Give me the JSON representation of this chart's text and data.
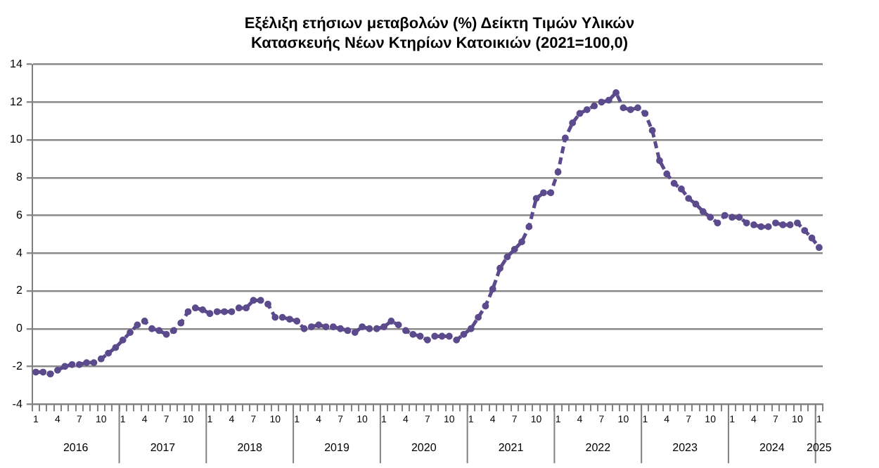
{
  "chart_data": {
    "type": "line",
    "title": "Εξέλιξη ετήσιων μεταβολών (%) Δείκτη Τιμών Υλικών Κατασκευής Νέων Κτηρίων Κατοικιών (2021=100,0)",
    "categories": [
      "1",
      null,
      null,
      "4",
      null,
      null,
      "7",
      null,
      null,
      "10",
      null,
      null,
      "1",
      null,
      null,
      "4",
      null,
      null,
      "7",
      null,
      null,
      "10",
      null,
      null,
      "1",
      null,
      null,
      "4",
      null,
      null,
      "7",
      null,
      null,
      "10",
      null,
      null,
      "1",
      null,
      null,
      "4",
      null,
      null,
      "7",
      null,
      null,
      "10",
      null,
      null,
      "1",
      null,
      null,
      "4",
      null,
      null,
      "7",
      null,
      null,
      "10",
      null,
      null,
      "1",
      null,
      null,
      "4",
      null,
      null,
      "7",
      null,
      null,
      "10",
      null,
      null,
      "1",
      null,
      null,
      "4",
      null,
      null,
      "7",
      null,
      null,
      "10",
      null,
      null,
      "1",
      null,
      null,
      "4",
      null,
      null,
      "7",
      null,
      null,
      "10",
      null,
      null,
      "1",
      null,
      null,
      "4",
      null,
      null,
      "7",
      null,
      null,
      "10",
      null,
      null,
      "1"
    ],
    "series": [
      {
        "color": "#5b4a8c",
        "values": [
          -2.3,
          -2.3,
          -2.4,
          -2.2,
          -2.0,
          -1.9,
          -1.9,
          -1.8,
          -1.8,
          -1.6,
          -1.3,
          -1.0,
          -0.6,
          -0.2,
          0.2,
          0.4,
          0.0,
          -0.1,
          -0.3,
          -0.1,
          0.3,
          0.9,
          1.1,
          1.0,
          0.8,
          0.9,
          0.9,
          0.9,
          1.1,
          1.1,
          1.5,
          1.5,
          1.3,
          0.6,
          0.6,
          0.5,
          0.4,
          0.0,
          0.1,
          0.2,
          0.1,
          0.1,
          0.0,
          -0.1,
          -0.2,
          0.1,
          0.0,
          0.0,
          0.1,
          0.4,
          0.2,
          -0.1,
          -0.3,
          -0.4,
          -0.6,
          -0.4,
          -0.4,
          -0.4,
          -0.6,
          -0.3,
          0.0,
          0.6,
          1.2,
          2.1,
          3.2,
          3.8,
          4.2,
          4.6,
          5.4,
          6.9,
          7.2,
          7.2,
          8.3,
          10.1,
          10.9,
          11.4,
          11.6,
          11.8,
          12.0,
          12.1,
          12.5,
          11.7,
          11.6,
          11.7,
          11.4,
          10.5,
          8.9,
          8.2,
          7.7,
          7.4,
          6.9,
          6.6,
          6.2,
          5.9,
          5.6,
          6.0,
          5.9,
          5.9,
          5.6,
          5.5,
          5.4,
          5.4,
          5.6,
          5.5,
          5.5,
          5.6,
          5.2,
          4.8,
          4.3
        ]
      }
    ],
    "annotations": [
      "2016",
      "2017",
      "2018",
      "2019",
      "2020",
      "2021",
      "2022",
      "2023",
      "2024",
      "2025"
    ],
    "ylim": [
      -4,
      14
    ],
    "yticks": [
      -4,
      -2,
      0,
      2,
      4,
      6,
      8,
      10,
      12,
      14
    ],
    "grid": "y",
    "legend": false,
    "marker": "circle",
    "line_style": "dashed"
  }
}
